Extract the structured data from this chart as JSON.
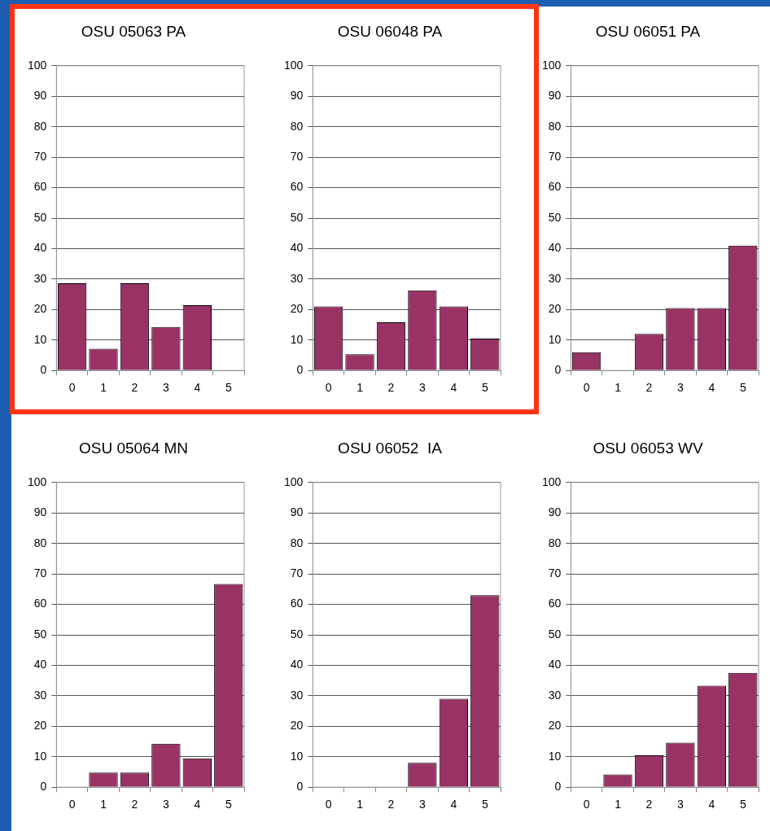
{
  "chart_data": [
    {
      "type": "bar",
      "title": "OSU 05063 PA",
      "categories": [
        "0",
        "1",
        "2",
        "3",
        "4",
        "5"
      ],
      "values": [
        28.6,
        7.1,
        28.6,
        14.3,
        21.4,
        0
      ],
      "color": "#993366",
      "ylim": [
        0,
        100
      ],
      "yticks": [
        0,
        10,
        20,
        30,
        40,
        50,
        60,
        70,
        80,
        90,
        100
      ],
      "grid": "y"
    },
    {
      "type": "bar",
      "title": "OSU 06048 PA",
      "categories": [
        "0",
        "1",
        "2",
        "3",
        "4",
        "5"
      ],
      "values": [
        21,
        5.3,
        15.8,
        26.3,
        21,
        10.5
      ],
      "color": "#993366",
      "ylim": [
        0,
        100
      ],
      "yticks": [
        0,
        10,
        20,
        30,
        40,
        50,
        60,
        70,
        80,
        90,
        100
      ],
      "grid": "y"
    },
    {
      "type": "bar",
      "title": "OSU 06051 PA",
      "categories": [
        "0",
        "1",
        "2",
        "3",
        "4",
        "5"
      ],
      "values": [
        6,
        0,
        12,
        20.5,
        20.5,
        41
      ],
      "color": "#993366",
      "ylim": [
        0,
        100
      ],
      "yticks": [
        0,
        10,
        20,
        30,
        40,
        50,
        60,
        70,
        80,
        90,
        100
      ],
      "grid": "y"
    },
    {
      "type": "bar",
      "title": "OSU 05064 MN",
      "categories": [
        "0",
        "1",
        "2",
        "3",
        "4",
        "5"
      ],
      "values": [
        0,
        4.8,
        4.8,
        14.3,
        9.5,
        66.7
      ],
      "color": "#993366",
      "ylim": [
        0,
        100
      ],
      "yticks": [
        0,
        10,
        20,
        30,
        40,
        50,
        60,
        70,
        80,
        90,
        100
      ],
      "grid": "y"
    },
    {
      "type": "bar",
      "title": "OSU 06052  IA",
      "categories": [
        "0",
        "1",
        "2",
        "3",
        "4",
        "5"
      ],
      "values": [
        0,
        0,
        0,
        8,
        29,
        63
      ],
      "color": "#993366",
      "ylim": [
        0,
        100
      ],
      "yticks": [
        0,
        10,
        20,
        30,
        40,
        50,
        60,
        70,
        80,
        90,
        100
      ],
      "grid": "y"
    },
    {
      "type": "bar",
      "title": "OSU 06053 WV",
      "categories": [
        "0",
        "1",
        "2",
        "3",
        "4",
        "5"
      ],
      "values": [
        0,
        4.2,
        10.5,
        14.6,
        33.3,
        37.5
      ],
      "color": "#993366",
      "ylim": [
        0,
        100
      ],
      "yticks": [
        0,
        10,
        20,
        30,
        40,
        50,
        60,
        70,
        80,
        90,
        100
      ],
      "grid": "y"
    }
  ]
}
